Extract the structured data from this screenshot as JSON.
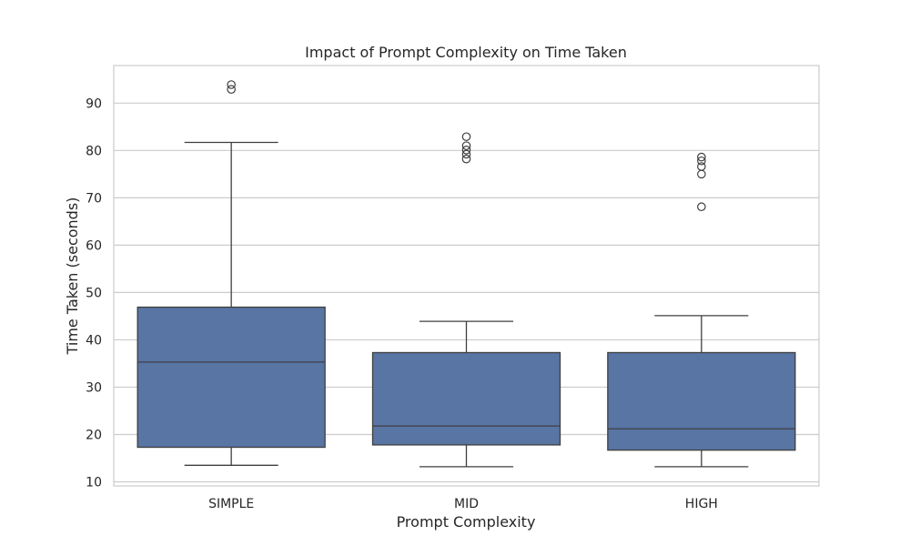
{
  "chart_data": {
    "type": "box",
    "title": "Impact of Prompt Complexity on Time Taken",
    "xlabel": "Prompt Complexity",
    "ylabel": "Time Taken (seconds)",
    "categories": [
      "SIMPLE",
      "MID",
      "HIGH"
    ],
    "yticks": [
      10,
      20,
      30,
      40,
      50,
      60,
      70,
      80,
      90
    ],
    "yticks_labels": [
      "10",
      "20",
      "30",
      "40",
      "50",
      "60",
      "70",
      "80",
      "90"
    ],
    "ylim": [
      9,
      98
    ],
    "grid": true,
    "box_color": "#5875a4",
    "line_color": "#3f3f3f",
    "boxes": [
      {
        "category": "SIMPLE",
        "whisker_low": 13.5,
        "q1": 17.3,
        "median": 35.3,
        "q3": 46.9,
        "whisker_high": 81.7,
        "outliers": [
          92.9,
          93.9
        ]
      },
      {
        "category": "MID",
        "whisker_low": 13.2,
        "q1": 17.8,
        "median": 21.8,
        "q3": 37.3,
        "whisker_high": 43.9,
        "outliers": [
          78.2,
          79.2,
          80.1,
          81.0,
          82.9
        ]
      },
      {
        "category": "HIGH",
        "whisker_low": 13.2,
        "q1": 16.7,
        "median": 21.2,
        "q3": 37.3,
        "whisker_high": 45.1,
        "outliers": [
          68.1,
          75.0,
          76.6,
          77.8,
          78.6
        ]
      }
    ]
  }
}
